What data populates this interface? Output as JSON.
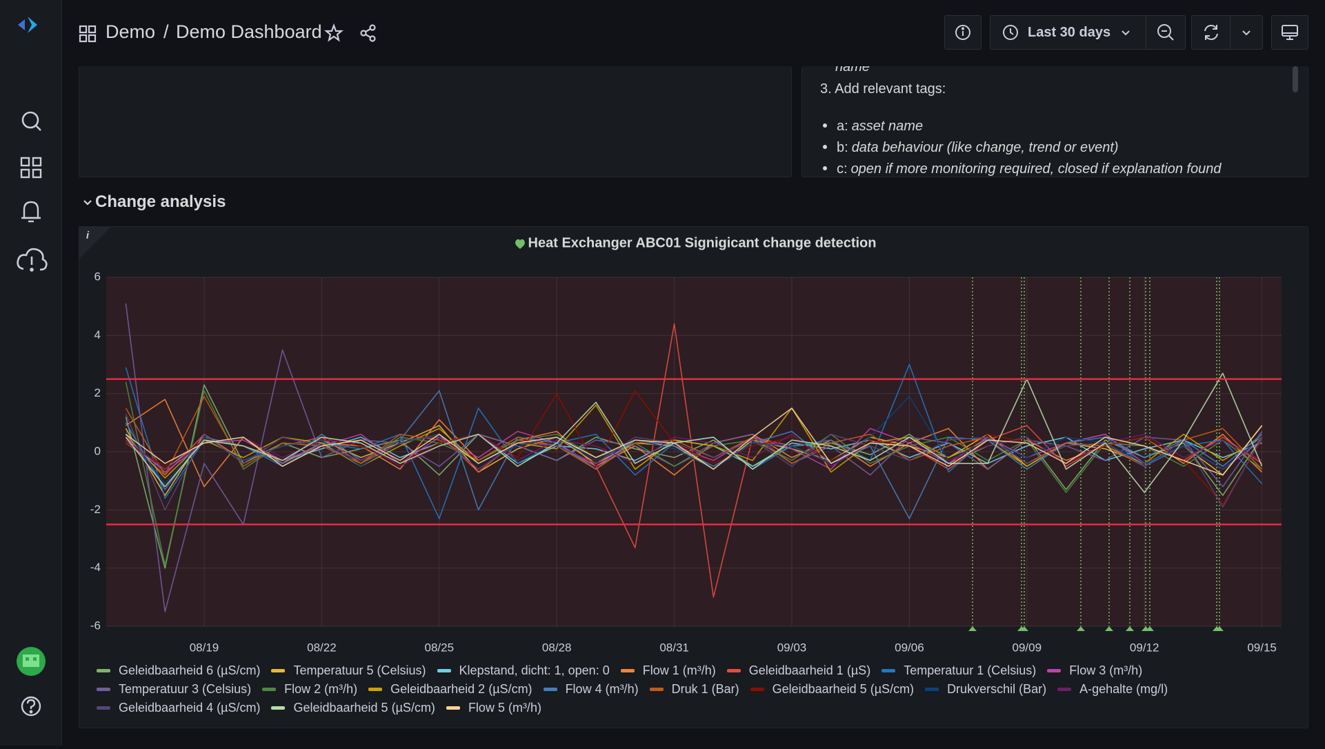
{
  "header": {
    "folder": "Demo",
    "separator": "/",
    "title": "Demo Dashboard",
    "time_range": "Last 30 days"
  },
  "text_panel": {
    "lines": [
      "name",
      "3. Add relevant tags:"
    ],
    "bullets": [
      {
        "key": "a:",
        "text": "asset name"
      },
      {
        "key": "b:",
        "text": "data behaviour (like change, trend or event)"
      },
      {
        "key": "c:",
        "text": "open if more monitoring required, closed if explanation found"
      }
    ]
  },
  "row_title": "Change analysis",
  "chart_data": {
    "type": "line",
    "title": "Heat Exchanger ABC01 Signigicant change detection",
    "categories": [
      null,
      null,
      "08/19",
      null,
      null,
      "08/22",
      null,
      null,
      "08/25",
      null,
      null,
      "08/28",
      null,
      null,
      "08/31",
      null,
      null,
      "09/03",
      null,
      null,
      "09/06",
      null,
      null,
      "09/09",
      null,
      null,
      "09/12",
      null,
      null,
      "09/15"
    ],
    "ylim": [
      -6,
      6
    ],
    "yticks": [
      -6,
      -4,
      -2,
      0,
      2,
      4,
      6
    ],
    "grid": true,
    "thresholds": [
      {
        "value": 2.5,
        "color": "#e02f44"
      },
      {
        "value": -2.5,
        "color": "#e02f44"
      }
    ],
    "series": [
      {
        "name": "Geleidbaarheid 6 (µS/cm)",
        "color": "#7eb26d",
        "values": [
          1.2,
          -4.0,
          2.3,
          -0.4,
          0.3,
          -0.2,
          0.1,
          0.4,
          -0.8,
          0.6,
          0.2,
          -0.3,
          0.5,
          0.1,
          -0.2,
          0.4,
          -0.5,
          0.2,
          0.3,
          -0.1,
          0.6,
          -0.4,
          0.2,
          0.5,
          -1.3,
          0.4,
          -0.2,
          0.3,
          -1.5,
          0.5
        ]
      },
      {
        "name": "Temperatuur 5 (Celsius)",
        "color": "#eab839",
        "values": [
          0.8,
          -1.5,
          0.6,
          -0.3,
          0.2,
          0.4,
          -0.2,
          0.3,
          0.9,
          -0.7,
          0.1,
          0.5,
          -0.4,
          0.3,
          0.2,
          -0.6,
          0.4,
          0.1,
          -0.3,
          0.5,
          0.2,
          -0.2,
          0.6,
          -0.5,
          0.3,
          0.1,
          -0.4,
          0.2,
          -0.8,
          0.9
        ]
      },
      {
        "name": "Klepstand, dicht: 1, open: 0",
        "color": "#6ed0e0",
        "values": [
          0.3,
          -0.6,
          0.4,
          0.2,
          -0.3,
          0.1,
          0.5,
          -0.2,
          0.3,
          0.6,
          -0.4,
          0.2,
          0.1,
          -0.3,
          0.4,
          0.2,
          -0.5,
          0.3,
          0.1,
          0.4,
          -0.2,
          0.3,
          -0.4,
          0.2,
          0.5,
          -0.3,
          0.1,
          0.4,
          -0.2,
          0.3
        ]
      },
      {
        "name": "Flow 1 (m³/h)",
        "color": "#ef843c",
        "values": [
          0.9,
          1.8,
          -1.2,
          0.5,
          -0.4,
          0.3,
          0.2,
          -0.6,
          1.1,
          -0.3,
          0.4,
          0.7,
          -0.5,
          0.2,
          -0.8,
          0.3,
          0.6,
          -0.2,
          0.4,
          -0.5,
          0.3,
          0.8,
          -0.6,
          0.4,
          -0.3,
          0.2,
          0.5,
          -0.4,
          0.6,
          -0.7
        ]
      },
      {
        "name": "Geleidbaarheid 1 (µS)",
        "color": "#e24d42",
        "values": [
          0.4,
          -0.8,
          0.6,
          -0.3,
          0.2,
          0.5,
          -0.4,
          0.3,
          0.6,
          -0.7,
          0.4,
          0.2,
          -0.5,
          -3.3,
          4.4,
          -5.0,
          0.5,
          0.2,
          -0.4,
          0.3,
          0.2,
          -0.6,
          0.4,
          0.9,
          -0.5,
          0.3,
          0.2,
          -0.3,
          0.5,
          -0.4
        ]
      },
      {
        "name": "Temperatuur 1 (Celsius)",
        "color": "#1f78c1",
        "values": [
          2.9,
          -1.6,
          0.4,
          0.2,
          -0.5,
          0.3,
          0.1,
          0.6,
          -2.3,
          1.5,
          -0.4,
          0.3,
          0.6,
          -0.8,
          0.3,
          0.5,
          -0.6,
          0.2,
          0.4,
          -0.3,
          3.0,
          -0.7,
          0.5,
          -0.4,
          0.3,
          0.6,
          -0.5,
          0.2,
          0.4,
          -1.1
        ]
      },
      {
        "name": "Flow 3 (m³/h)",
        "color": "#ba43a9",
        "values": [
          0.5,
          -0.7,
          0.3,
          0.4,
          -0.3,
          0.2,
          0.6,
          -0.4,
          0.5,
          -0.2,
          0.7,
          0.3,
          -0.5,
          0.4,
          0.2,
          -0.3,
          0.5,
          0.1,
          -0.6,
          0.8,
          0.3,
          -0.4,
          0.5,
          -0.2,
          0.3,
          0.6,
          -0.4,
          0.2,
          -0.6,
          0.4
        ]
      },
      {
        "name": "Temperatuur 3 (Celsius)",
        "color": "#705da0",
        "values": [
          5.1,
          -5.5,
          -0.4,
          -2.5,
          3.5,
          -0.2,
          0.4,
          0.3,
          -0.5,
          0.6,
          0.2,
          -0.3,
          0.4,
          0.2,
          -0.5,
          0.3,
          0.6,
          -0.4,
          0.2,
          -0.8,
          0.5,
          0.3,
          -0.6,
          0.4,
          0.2,
          -0.3,
          0.5,
          0.4,
          -1.2,
          0.7
        ]
      },
      {
        "name": "Flow 2 (m³/h)",
        "color": "#508642",
        "values": [
          2.4,
          -3.9,
          2.1,
          -0.6,
          0.3,
          0.2,
          -0.4,
          0.5,
          0.3,
          -0.3,
          0.4,
          0.6,
          -0.2,
          0.3,
          -0.5,
          0.2,
          0.4,
          -0.3,
          0.6,
          -0.4,
          0.2,
          0.5,
          -0.3,
          0.4,
          -1.4,
          0.3,
          0.2,
          -0.5,
          0.4,
          -0.6
        ]
      },
      {
        "name": "Geleidbaarheid 2 (µS/cm)",
        "color": "#cca300",
        "values": [
          0.6,
          -0.9,
          0.4,
          -0.2,
          0.5,
          0.3,
          -0.5,
          0.2,
          0.8,
          -0.4,
          0.3,
          0.1,
          1.6,
          -0.6,
          0.4,
          0.2,
          -0.3,
          1.5,
          -0.7,
          0.3,
          0.5,
          -0.2,
          0.4,
          -0.5,
          0.3,
          0.2,
          -0.4,
          0.6,
          -0.3,
          0.5
        ]
      },
      {
        "name": "Flow 4 (m³/h)",
        "color": "#447ebc",
        "values": [
          1.0,
          -1.3,
          0.5,
          0.2,
          -0.4,
          0.6,
          -0.3,
          0.4,
          2.1,
          -2.0,
          0.5,
          0.3,
          -0.6,
          0.4,
          0.2,
          -0.5,
          0.3,
          0.7,
          -0.4,
          0.2,
          -2.3,
          0.5,
          0.4,
          -0.6,
          0.3,
          0.5,
          -0.2,
          0.4,
          -0.5,
          0.6
        ]
      },
      {
        "name": "Druk 1 (Bar)",
        "color": "#c15c17",
        "values": [
          1.5,
          -0.8,
          1.9,
          -0.5,
          0.3,
          0.2,
          -0.4,
          0.6,
          0.4,
          -0.3,
          0.5,
          0.2,
          -0.6,
          0.3,
          0.4,
          -0.2,
          0.5,
          -0.4,
          0.3,
          0.6,
          -0.3,
          0.2,
          0.5,
          -0.4,
          0.3,
          0.2,
          -0.5,
          0.4,
          0.8,
          -0.6
        ]
      },
      {
        "name": "Geleidbaarheid 5 (µS/cm)",
        "color": "#890f02",
        "values": [
          0.3,
          -0.5,
          0.4,
          0.2,
          -0.3,
          0.5,
          0.2,
          -0.4,
          0.3,
          0.6,
          -0.2,
          2.0,
          -0.5,
          2.1,
          0.3,
          -0.4,
          0.2,
          0.5,
          -0.3,
          0.4,
          0.2,
          -0.5,
          0.6,
          0.3,
          -0.4,
          0.2,
          0.5,
          -0.3,
          -1.8,
          0.4
        ]
      },
      {
        "name": "Drukverschil (Bar)",
        "color": "#0a437c",
        "values": [
          0.7,
          -1.1,
          0.5,
          -0.3,
          0.2,
          0.4,
          -0.5,
          0.3,
          0.6,
          -0.4,
          0.2,
          0.5,
          -0.3,
          0.4,
          0.1,
          -0.6,
          0.3,
          0.2,
          -0.4,
          0.5,
          1.9,
          -0.3,
          0.4,
          -0.2,
          0.5,
          0.3,
          -0.4,
          0.2,
          -0.6,
          0.5
        ]
      },
      {
        "name": "A-gehalte (mg/l)",
        "color": "#6d1f62",
        "values": [
          0.4,
          -0.6,
          0.3,
          0.5,
          -0.2,
          0.4,
          0.3,
          -0.5,
          0.2,
          0.6,
          -0.3,
          0.4,
          0.2,
          -0.4,
          0.5,
          0.3,
          -0.2,
          0.6,
          -0.5,
          0.3,
          0.4,
          -0.3,
          0.2,
          0.5,
          -0.4,
          0.3,
          0.6,
          -0.2,
          0.4,
          -0.3
        ]
      },
      {
        "name": "Geleidbaarheid 4 (µS/cm)",
        "color": "#584477",
        "values": [
          1.3,
          -2.0,
          0.6,
          -0.4,
          0.5,
          0.2,
          -0.3,
          0.4,
          0.5,
          -0.6,
          0.3,
          0.2,
          -0.4,
          0.5,
          0.3,
          -0.2,
          0.4,
          -0.5,
          0.6,
          0.2,
          -0.3,
          0.4,
          0.5,
          -0.4,
          0.2,
          0.3,
          -0.5,
          0.4,
          -1.9,
          0.5
        ]
      },
      {
        "name": "Geleidbaarheid 5 (µS/cm)",
        "color": "#b7dbab",
        "values": [
          0.5,
          -1.2,
          0.4,
          0.2,
          -0.3,
          0.5,
          0.3,
          -0.4,
          0.2,
          0.6,
          -0.5,
          0.3,
          1.7,
          -0.4,
          0.3,
          0.5,
          -0.6,
          0.4,
          0.2,
          -0.3,
          0.5,
          -0.4,
          -0.4,
          2.5,
          -0.6,
          0.3,
          -1.4,
          0.4,
          2.7,
          -0.5
        ]
      },
      {
        "name": "Flow 5 (m³/h)",
        "color": "#f4d598",
        "values": [
          0.6,
          -0.4,
          0.3,
          0.5,
          -0.5,
          0.2,
          0.4,
          -0.3,
          0.6,
          -0.4,
          0.3,
          0.5,
          -0.2,
          0.4,
          0.3,
          -0.6,
          0.5,
          1.5,
          -0.4,
          0.3,
          0.2,
          -0.5,
          0.4,
          0.3,
          -0.4,
          0.5,
          0.2,
          -0.3,
          -0.8,
          0.9
        ]
      }
    ]
  }
}
